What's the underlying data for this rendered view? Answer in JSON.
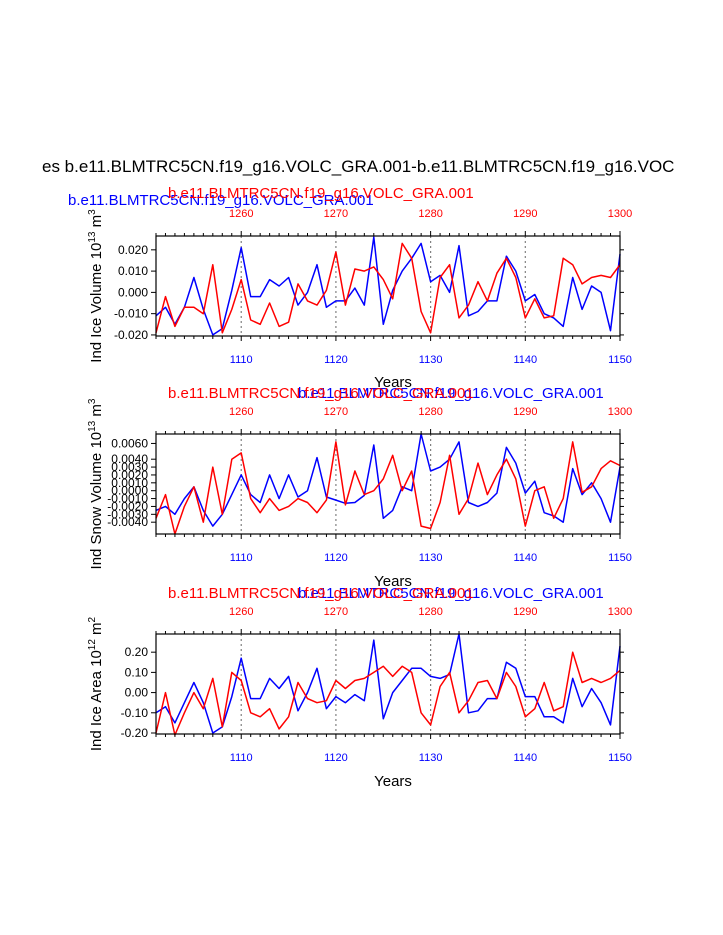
{
  "page": {
    "title": "es b.e11.BLMTRC5CN.f19_g16.VOLC_GRA.001-b.e11.BLMTRC5CN.f19_g16.VOC",
    "x_label": "Years"
  },
  "colors": {
    "case_a": "#0000ff",
    "case_b": "#ff0000",
    "frame": "#000000",
    "vline": "#808080"
  },
  "chart_data": [
    {
      "type": "line",
      "name": "ice-volume",
      "ylabel": "Ind Ice Volume 10",
      "ylabel_exp": "13",
      "ylabel_unit": " m",
      "ylabel_unit_exp": "3",
      "top_titles": {
        "blue": "b.e11.BLMTRC5CN.f19_g16.VOLC_GRA.001",
        "red": "b.e11.BLMTRC5CN.f19_g16.VOLC_GRA.001"
      },
      "xlim_bottom": [
        1101,
        1150
      ],
      "xlim_top": [
        1251,
        1300
      ],
      "ylim": [
        -0.0205,
        0.0265
      ],
      "yticks": [
        0.02,
        0.01,
        0.0,
        -0.01,
        -0.02
      ],
      "ytick_labels": [
        "0.020",
        "0.010",
        "0.000",
        "-0.010",
        "-0.020"
      ],
      "xticks_bottom": [
        1110,
        1120,
        1130,
        1140,
        1150
      ],
      "xticks_bottom_labels": [
        "1110",
        "1120",
        "1130",
        "1140",
        "1150"
      ],
      "xticks_top": [
        1260,
        1270,
        1280,
        1290,
        1300
      ],
      "xticks_top_labels": [
        "1260",
        "1270",
        "1280",
        "1290",
        "1300"
      ],
      "series": [
        {
          "name": "b.e11.BLMTRC5CN.f19_g16.VOLC_GRA.001",
          "color": "#0000ff",
          "axis": "bottom",
          "x": [
            1101,
            1102,
            1103,
            1104,
            1105,
            1106,
            1107,
            1108,
            1109,
            1110,
            1111,
            1112,
            1113,
            1114,
            1115,
            1116,
            1117,
            1118,
            1119,
            1120,
            1121,
            1122,
            1123,
            1124,
            1125,
            1126,
            1127,
            1128,
            1129,
            1130,
            1131,
            1132,
            1133,
            1134,
            1135,
            1136,
            1137,
            1138,
            1139,
            1140,
            1141,
            1142,
            1143,
            1144,
            1145,
            1146,
            1147,
            1148,
            1149,
            1150
          ],
          "values": [
            -0.011,
            -0.007,
            -0.015,
            -0.007,
            0.007,
            -0.008,
            -0.02,
            -0.017,
            0.001,
            0.021,
            -0.002,
            -0.002,
            0.006,
            0.003,
            0.007,
            -0.006,
            0.0,
            0.013,
            -0.007,
            -0.004,
            -0.004,
            0.002,
            -0.006,
            0.026,
            -0.015,
            0.001,
            0.01,
            0.016,
            0.023,
            0.005,
            0.008,
            0.0,
            0.022,
            -0.011,
            -0.009,
            -0.004,
            -0.004,
            0.017,
            0.01,
            -0.004,
            -0.001,
            -0.01,
            -0.012,
            -0.016,
            0.007,
            -0.008,
            0.003,
            0.0,
            -0.018,
            0.018
          ]
        },
        {
          "name": "b.e11.BLMTRC5CN.f19_g16.VOLC_GRA.001",
          "color": "#ff0000",
          "axis": "top",
          "x": [
            1251,
            1252,
            1253,
            1254,
            1255,
            1256,
            1257,
            1258,
            1259,
            1260,
            1261,
            1262,
            1263,
            1264,
            1265,
            1266,
            1267,
            1268,
            1269,
            1270,
            1271,
            1272,
            1273,
            1274,
            1275,
            1276,
            1277,
            1278,
            1279,
            1280,
            1281,
            1282,
            1283,
            1284,
            1285,
            1286,
            1287,
            1288,
            1289,
            1290,
            1291,
            1292,
            1293,
            1294,
            1295,
            1296,
            1297,
            1298,
            1299,
            1300
          ],
          "values": [
            -0.019,
            -0.002,
            -0.016,
            -0.007,
            -0.007,
            -0.01,
            0.013,
            -0.019,
            -0.008,
            0.006,
            -0.013,
            -0.015,
            -0.005,
            -0.016,
            -0.014,
            0.004,
            -0.004,
            -0.006,
            0.001,
            0.019,
            -0.006,
            0.011,
            0.01,
            0.012,
            0.006,
            -0.003,
            0.023,
            0.016,
            -0.009,
            -0.019,
            0.007,
            0.013,
            -0.012,
            -0.006,
            0.005,
            -0.004,
            0.009,
            0.016,
            0.007,
            -0.012,
            -0.003,
            -0.012,
            -0.011,
            0.016,
            0.013,
            0.004,
            0.007,
            0.008,
            0.007,
            0.013
          ]
        }
      ]
    },
    {
      "type": "line",
      "name": "snow-volume",
      "ylabel": "Ind Snow Volume 10",
      "ylabel_exp": "13",
      "ylabel_unit": " m",
      "ylabel_unit_exp": "3",
      "top_titles": {
        "blue": "b.e11.BLMTRC5CN.f19_g16.VOLC_GRA.001",
        "red": "b.e11.BLMTRC5CN.f19_g16.VOLC_GRA.001"
      },
      "xlim_bottom": [
        1101,
        1150
      ],
      "xlim_top": [
        1251,
        1300
      ],
      "ylim": [
        -0.0055,
        0.0072
      ],
      "yticks": [
        0.006,
        0.004,
        0.003,
        0.002,
        0.001,
        0.0,
        -0.001,
        -0.002,
        -0.003,
        -0.004
      ],
      "ytick_labels": [
        "0.0060",
        "0.0040",
        "0.0030",
        "0.0020",
        "0.0010",
        "0.0000",
        "-0.0010",
        "-0.0020",
        "-0.0030",
        "-0.0040"
      ],
      "xticks_bottom": [
        1110,
        1120,
        1130,
        1140,
        1150
      ],
      "xticks_bottom_labels": [
        "1110",
        "1120",
        "1130",
        "1140",
        "1150"
      ],
      "xticks_top": [
        1260,
        1270,
        1280,
        1290,
        1300
      ],
      "xticks_top_labels": [
        "1260",
        "1270",
        "1280",
        "1290",
        "1300"
      ],
      "series": [
        {
          "name": "b.e11.BLMTRC5CN.f19_g16.VOLC_GRA.001",
          "color": "#0000ff",
          "axis": "bottom",
          "x": [
            1101,
            1102,
            1103,
            1104,
            1105,
            1106,
            1107,
            1108,
            1109,
            1110,
            1111,
            1112,
            1113,
            1114,
            1115,
            1116,
            1117,
            1118,
            1119,
            1120,
            1121,
            1122,
            1123,
            1124,
            1125,
            1126,
            1127,
            1128,
            1129,
            1130,
            1131,
            1132,
            1133,
            1134,
            1135,
            1136,
            1137,
            1138,
            1139,
            1140,
            1141,
            1142,
            1143,
            1144,
            1145,
            1146,
            1147,
            1148,
            1149,
            1150
          ],
          "values": [
            -0.0025,
            -0.002,
            -0.003,
            -0.001,
            0.0005,
            -0.0025,
            -0.0045,
            -0.003,
            -0.0005,
            0.002,
            -0.0005,
            -0.0015,
            0.002,
            -0.001,
            0.002,
            -0.0008,
            0.0,
            0.0042,
            -0.0008,
            -0.0012,
            -0.0016,
            -0.0015,
            -0.0006,
            0.0058,
            -0.0035,
            -0.0025,
            0.0005,
            0.0,
            0.0072,
            0.0025,
            0.003,
            0.004,
            0.0062,
            -0.0015,
            -0.002,
            -0.0015,
            -0.0003,
            0.0055,
            0.0035,
            -0.0003,
            0.0012,
            -0.0028,
            -0.0032,
            -0.004,
            0.0028,
            -0.0005,
            0.001,
            -0.001,
            -0.004,
            0.003
          ]
        },
        {
          "name": "b.e11.BLMTRC5CN.f19_g16.VOLC_GRA.001",
          "color": "#ff0000",
          "axis": "top",
          "x": [
            1251,
            1252,
            1253,
            1254,
            1255,
            1256,
            1257,
            1258,
            1259,
            1260,
            1261,
            1262,
            1263,
            1264,
            1265,
            1266,
            1267,
            1268,
            1269,
            1270,
            1271,
            1272,
            1273,
            1274,
            1275,
            1276,
            1277,
            1278,
            1279,
            1280,
            1281,
            1282,
            1283,
            1284,
            1285,
            1286,
            1287,
            1288,
            1289,
            1290,
            1291,
            1292,
            1293,
            1294,
            1295,
            1296,
            1297,
            1298,
            1299,
            1300
          ],
          "values": [
            -0.0035,
            -0.0005,
            -0.0055,
            -0.002,
            0.0005,
            -0.004,
            0.003,
            -0.003,
            0.004,
            0.0048,
            -0.001,
            -0.0028,
            -0.001,
            -0.0025,
            -0.002,
            -0.001,
            -0.0015,
            -0.0028,
            -0.0012,
            0.0062,
            -0.0018,
            0.0025,
            -0.0005,
            0.0,
            0.0015,
            0.0045,
            0.0,
            0.0025,
            -0.0045,
            -0.0048,
            -0.0015,
            0.0045,
            -0.003,
            -0.001,
            0.0035,
            -0.0005,
            0.002,
            0.004,
            0.0015,
            -0.0045,
            0.0,
            0.0005,
            -0.0035,
            -0.001,
            0.0062,
            -0.0002,
            0.0005,
            0.0028,
            0.0038,
            0.0032
          ]
        }
      ]
    },
    {
      "type": "line",
      "name": "ice-area",
      "ylabel": "Ind Ice Area 10",
      "ylabel_exp": "12",
      "ylabel_unit": " m",
      "ylabel_unit_exp": "2",
      "top_titles": {
        "blue": "b.e11.BLMTRC5CN.f19_g16.VOLC_GRA.001",
        "red": "b.e11.BLMTRC5CN.f19_g16.VOLC_GRA.001"
      },
      "xlim_bottom": [
        1101,
        1150
      ],
      "xlim_top": [
        1251,
        1300
      ],
      "ylim": [
        -0.205,
        0.29
      ],
      "yticks": [
        0.2,
        0.1,
        0.0,
        -0.1,
        -0.2
      ],
      "ytick_labels": [
        "0.20",
        "0.10",
        "0.00",
        "-0.10",
        "-0.20"
      ],
      "xticks_bottom": [
        1110,
        1120,
        1130,
        1140,
        1150
      ],
      "xticks_bottom_labels": [
        "1110",
        "1120",
        "1130",
        "1140",
        "1150"
      ],
      "xticks_top": [
        1260,
        1270,
        1280,
        1290,
        1300
      ],
      "xticks_top_labels": [
        "1260",
        "1270",
        "1280",
        "1290",
        "1300"
      ],
      "series": [
        {
          "name": "b.e11.BLMTRC5CN.f19_g16.VOLC_GRA.001",
          "color": "#0000ff",
          "axis": "bottom",
          "x": [
            1101,
            1102,
            1103,
            1104,
            1105,
            1106,
            1107,
            1108,
            1109,
            1110,
            1111,
            1112,
            1113,
            1114,
            1115,
            1116,
            1117,
            1118,
            1119,
            1120,
            1121,
            1122,
            1123,
            1124,
            1125,
            1126,
            1127,
            1128,
            1129,
            1130,
            1131,
            1132,
            1133,
            1134,
            1135,
            1136,
            1137,
            1138,
            1139,
            1140,
            1141,
            1142,
            1143,
            1144,
            1145,
            1146,
            1147,
            1148,
            1149,
            1150
          ],
          "values": [
            -0.1,
            -0.07,
            -0.15,
            -0.05,
            0.05,
            -0.05,
            -0.2,
            -0.17,
            -0.02,
            0.17,
            -0.03,
            -0.03,
            0.07,
            0.02,
            0.08,
            -0.09,
            0.0,
            0.12,
            -0.08,
            -0.02,
            -0.05,
            -0.01,
            -0.04,
            0.26,
            -0.13,
            0.0,
            0.06,
            0.12,
            0.12,
            0.08,
            0.07,
            0.09,
            0.29,
            -0.1,
            -0.09,
            -0.03,
            -0.03,
            0.15,
            0.12,
            -0.02,
            -0.02,
            -0.12,
            -0.12,
            -0.15,
            0.07,
            -0.07,
            0.02,
            -0.05,
            -0.16,
            0.23
          ]
        },
        {
          "name": "b.e11.BLMTRC5CN.f19_g16.VOLC_GRA.001",
          "color": "#ff0000",
          "axis": "top",
          "x": [
            1251,
            1252,
            1253,
            1254,
            1255,
            1256,
            1257,
            1258,
            1259,
            1260,
            1261,
            1262,
            1263,
            1264,
            1265,
            1266,
            1267,
            1268,
            1269,
            1270,
            1271,
            1272,
            1273,
            1274,
            1275,
            1276,
            1277,
            1278,
            1279,
            1280,
            1281,
            1282,
            1283,
            1284,
            1285,
            1286,
            1287,
            1288,
            1289,
            1290,
            1291,
            1292,
            1293,
            1294,
            1295,
            1296,
            1297,
            1298,
            1299,
            1300
          ],
          "values": [
            -0.2,
            0.0,
            -0.21,
            -0.1,
            0.0,
            -0.08,
            0.07,
            -0.17,
            0.1,
            0.06,
            -0.1,
            -0.12,
            -0.08,
            -0.18,
            -0.12,
            0.05,
            -0.03,
            -0.05,
            -0.04,
            0.06,
            0.02,
            0.06,
            0.07,
            0.1,
            0.13,
            0.08,
            0.13,
            0.1,
            -0.1,
            -0.16,
            0.03,
            0.1,
            -0.1,
            -0.04,
            0.05,
            0.06,
            -0.03,
            0.1,
            0.03,
            -0.12,
            -0.08,
            0.05,
            -0.09,
            -0.07,
            0.2,
            0.05,
            0.07,
            0.05,
            0.07,
            0.11
          ]
        }
      ]
    }
  ]
}
